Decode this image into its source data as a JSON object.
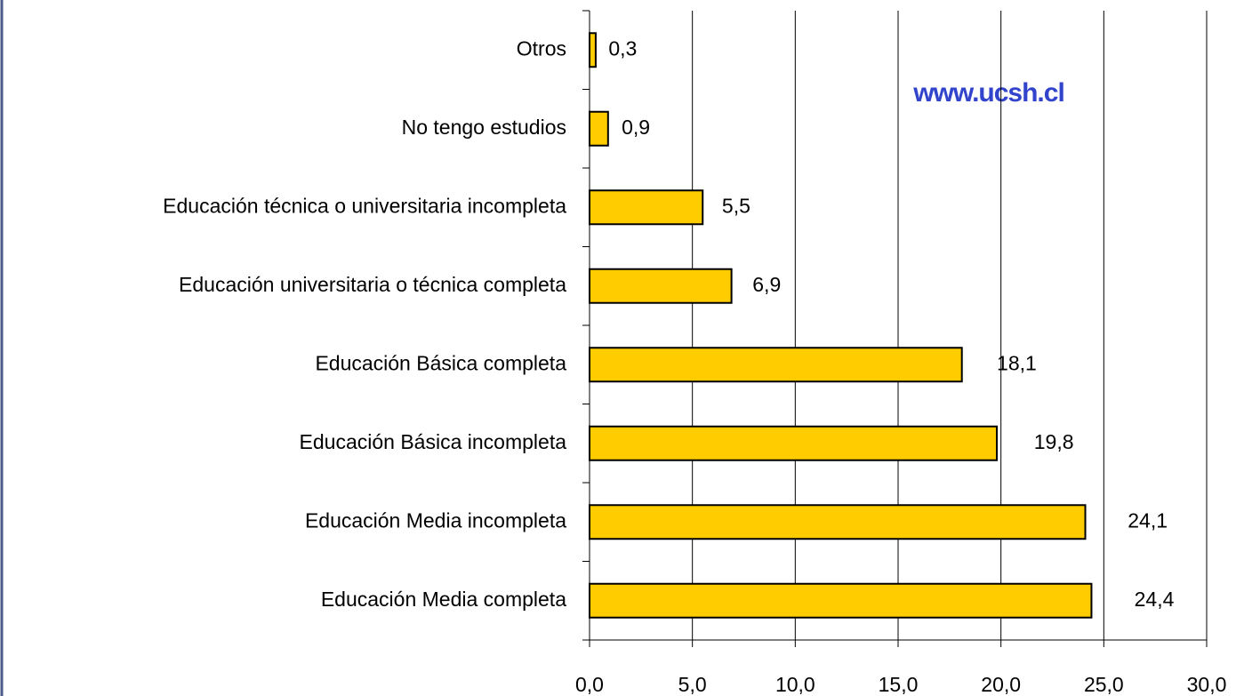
{
  "chart_data": {
    "type": "bar",
    "orientation": "horizontal",
    "categories": [
      "Otros",
      "No tengo estudios",
      "Educación técnica o universitaria incompleta",
      "Educación universitaria o técnica completa",
      "Educación Básica completa",
      "Educación Básica incompleta",
      "Educación Media incompleta",
      "Educación Media completa"
    ],
    "values": [
      0.3,
      0.9,
      5.5,
      6.9,
      18.1,
      19.8,
      24.1,
      24.4
    ],
    "value_labels": [
      "0,3",
      "0,9",
      "5,5",
      "6,9",
      "18,1",
      "19,8",
      "24,1",
      "24,4"
    ],
    "color": "#ffcc00",
    "xlim": [
      0,
      30
    ],
    "xticks": [
      {
        "value": 0,
        "label": "0,0"
      },
      {
        "value": 5,
        "label": "5,0"
      },
      {
        "value": 10,
        "label": "10,0"
      },
      {
        "value": 15,
        "label": "15,0"
      },
      {
        "value": 20,
        "label": "20,0"
      },
      {
        "value": 25,
        "label": "25,0"
      },
      {
        "value": 30,
        "label": "30,0"
      }
    ],
    "grid": true,
    "annotation": "www.ucsh.cl"
  }
}
